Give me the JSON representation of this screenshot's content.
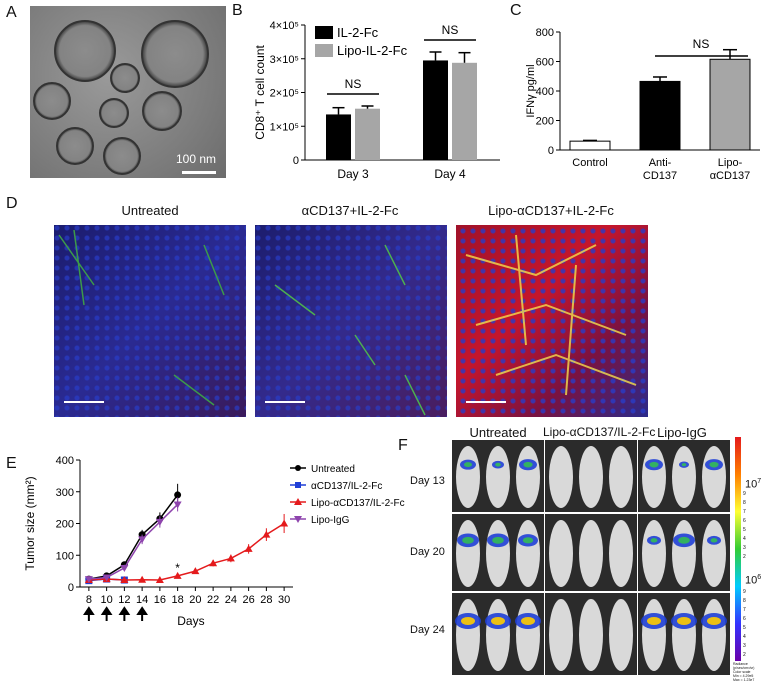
{
  "panels": {
    "A": {
      "letter": "A",
      "scale_bar_label": "100 nm"
    },
    "B": {
      "letter": "B"
    },
    "C": {
      "letter": "C"
    },
    "D": {
      "letter": "D",
      "titles": [
        "Untreated",
        "αCD137+IL-2-Fc",
        "Lipo-αCD137+IL-2-Fc"
      ]
    },
    "E": {
      "letter": "E",
      "xlabel_word": "Days"
    },
    "F": {
      "letter": "F",
      "columns": [
        "Untreated",
        "Lipo-αCD137/IL-2-Fc",
        "Lipo-IgG"
      ],
      "rows": [
        "Day 13",
        "Day 20",
        "Day 24"
      ],
      "colorbar_top": "10",
      "colorbar_top_exp": "7",
      "colorbar_mid": "10",
      "colorbar_mid_exp": "6",
      "colorbar_minor_ticks": [
        "9",
        "8",
        "7",
        "6",
        "5",
        "4",
        "3",
        "2"
      ],
      "colorbar_minor_ticks_low": [
        "9",
        "8",
        "7",
        "6",
        "5",
        "4",
        "3",
        "2"
      ],
      "colorbar_caption": [
        "Radiance",
        "(p/sec/cm²/sr)",
        "Color scale",
        "Min = 4.29e5",
        "Max = 1.23e7"
      ]
    }
  },
  "chart_data": [
    {
      "id": "B",
      "type": "bar",
      "ylabel": "CD8⁺ T cell count",
      "ytick_labels": [
        "0",
        "1×10⁵",
        "2×10⁵",
        "3×10⁵",
        "4×10⁵"
      ],
      "ylim": [
        0,
        400000
      ],
      "categories": [
        "Day 3",
        "Day 4"
      ],
      "series": [
        {
          "name": "IL-2-Fc",
          "color": "#000000",
          "values": [
            135000,
            295000
          ],
          "errors": [
            20000,
            25000
          ]
        },
        {
          "name": "Lipo-IL-2-Fc",
          "color": "#a6a6a6",
          "values": [
            152000,
            288000
          ],
          "errors": [
            8000,
            30000
          ]
        }
      ],
      "annotations": [
        "NS",
        "NS"
      ],
      "legend_position": "top-left"
    },
    {
      "id": "C",
      "type": "bar",
      "ylabel": "IFNγ pg/ml",
      "ytick_labels": [
        "0",
        "200",
        "400",
        "600",
        "800"
      ],
      "ylim": [
        0,
        800
      ],
      "categories": [
        "Control",
        "Anti-\nCD137",
        "Lipo-\nαCD137"
      ],
      "category_lines": [
        [
          "Control"
        ],
        [
          "Anti-",
          "CD137"
        ],
        [
          "Lipo-",
          "αCD137"
        ]
      ],
      "values": [
        60,
        465,
        615
      ],
      "errors": [
        5,
        30,
        65
      ],
      "colors": [
        "#ffffff",
        "#000000",
        "#a6a6a6"
      ],
      "annotations": [
        "NS"
      ]
    },
    {
      "id": "E",
      "type": "line",
      "ylabel": "Tumor size (mm²)",
      "xlabel": "Days",
      "ylim": [
        0,
        400
      ],
      "xlim": [
        7,
        31
      ],
      "xticks": [
        8,
        10,
        12,
        14,
        16,
        18,
        20,
        22,
        24,
        26,
        28,
        30
      ],
      "yticks": [
        0,
        100,
        200,
        300,
        400
      ],
      "treatment_days": [
        8,
        10,
        12,
        14
      ],
      "annotation": "*",
      "series": [
        {
          "name": "Untreated",
          "color": "#000000",
          "marker": "circle",
          "x": [
            8,
            10,
            12,
            14,
            16,
            18
          ],
          "y": [
            25,
            35,
            70,
            165,
            215,
            290
          ],
          "err": [
            5,
            8,
            10,
            15,
            20,
            35
          ]
        },
        {
          "name": "αCD137/IL-2-Fc",
          "color": "#1f3fd6",
          "marker": "square",
          "x": [
            8,
            10,
            12
          ],
          "y": [
            20,
            25,
            22
          ],
          "err": [
            3,
            4,
            4
          ]
        },
        {
          "name": "Lipo-αCD137/IL-2-Fc",
          "color": "#e41a1c",
          "marker": "triangle",
          "x": [
            8,
            10,
            12,
            14,
            16,
            18,
            20,
            22,
            24,
            26,
            28,
            30
          ],
          "y": [
            22,
            25,
            22,
            23,
            22,
            35,
            50,
            75,
            90,
            120,
            165,
            200
          ],
          "err": [
            3,
            4,
            4,
            4,
            4,
            6,
            6,
            10,
            12,
            15,
            20,
            30
          ]
        },
        {
          "name": "Lipo-IgG",
          "color": "#8e44ad",
          "marker": "triangle-down",
          "x": [
            8,
            10,
            12,
            14,
            16,
            18
          ],
          "y": [
            25,
            30,
            60,
            150,
            205,
            260
          ],
          "err": [
            5,
            6,
            10,
            15,
            18,
            22
          ]
        }
      ],
      "legend_position": "right"
    }
  ]
}
